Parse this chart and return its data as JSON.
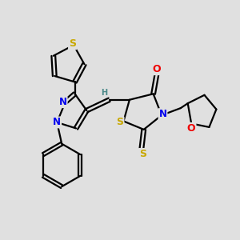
{
  "background_color": "#e0e0e0",
  "bond_color": "#000000",
  "atom_colors": {
    "S": "#c8a800",
    "N": "#0000ee",
    "O": "#ee0000",
    "C": "#000000",
    "H": "#4a8888"
  },
  "font_size": 8.5,
  "fig_size": [
    3.0,
    3.0
  ],
  "dpi": 100
}
